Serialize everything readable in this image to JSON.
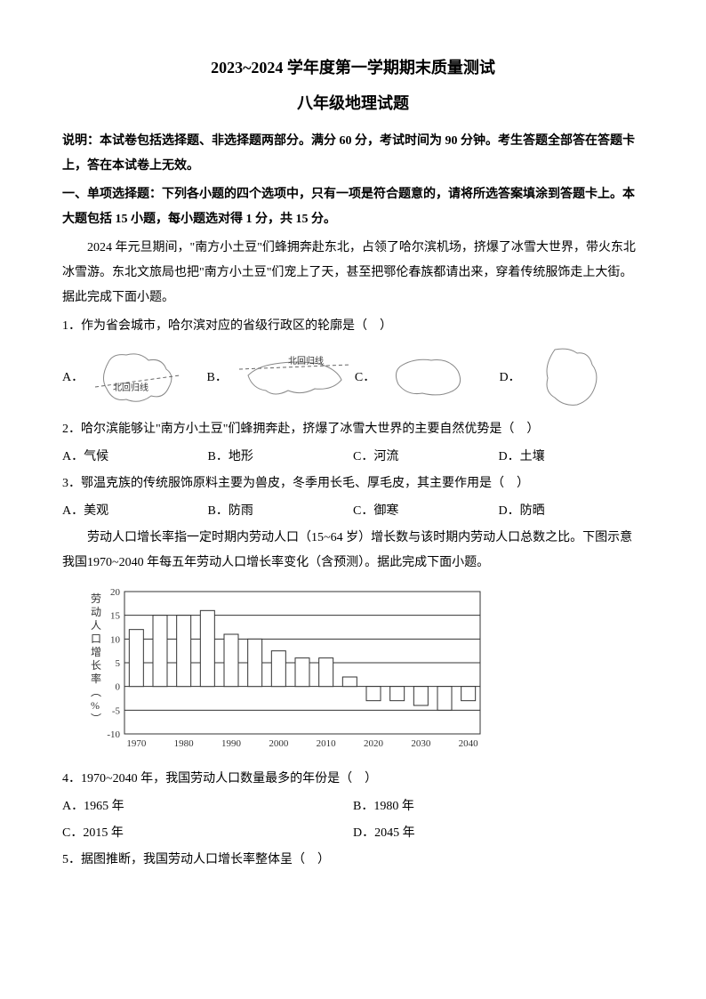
{
  "title_main": "2023~2024 学年度第一学期期末质量测试",
  "title_sub": "八年级地理试题",
  "instruction": "说明：本试卷包括选择题、非选择题两部分。满分 60 分，考试时间为 90 分钟。考生答题全部答在答题卡上，答在本试卷上无效。",
  "section1_header": "一、单项选择题：下列各小题的四个选项中，只有一项是符合题意的，请将所选答案填涂到答题卡上。本大题包括 15 小题，每小题选对得 1 分，共 15 分。",
  "passage1": "2024 年元旦期间，\"南方小土豆\"们蜂拥奔赴东北，占领了哈尔滨机场，挤爆了冰雪大世界，带火东北冰雪游。东北文旅局也把\"南方小土豆\"们宠上了天，甚至把鄂伦春族都请出来，穿着传统服饰走上大街。据此完成下面小题。",
  "q1": {
    "text": "1．作为省会城市，哈尔滨对应的省级行政区的轮廓是（　）",
    "maps": {
      "a_label": "北回归线",
      "b_label": "北回归线"
    },
    "opts": {
      "a": "A．",
      "b": "B．",
      "c": "C．",
      "d": "D．"
    }
  },
  "q2": {
    "text": "2．哈尔滨能够让\"南方小土豆\"们蜂拥奔赴，挤爆了冰雪大世界的主要自然优势是（　）",
    "opts": {
      "a": "A．气候",
      "b": "B．地形",
      "c": "C．河流",
      "d": "D．土壤"
    }
  },
  "q3": {
    "text": "3．鄂温克族的传统服饰原料主要为兽皮，冬季用长毛、厚毛皮，其主要作用是（　）",
    "opts": {
      "a": "A．美观",
      "b": "B．防雨",
      "c": "C．御寒",
      "d": "D．防晒"
    }
  },
  "passage2": "劳动人口增长率指一定时期内劳动人口（15~64 岁）增长数与该时期内劳动人口总数之比。下图示意我国1970~2040 年每五年劳动人口增长率变化（含预测）。据此完成下面小题。",
  "chart": {
    "type": "bar",
    "y_title_lines": [
      "劳",
      "动",
      "人",
      "口",
      "增",
      "长",
      "率",
      "︵",
      "%",
      "︶"
    ],
    "years": [
      1970,
      1975,
      1980,
      1985,
      1990,
      1995,
      2000,
      2005,
      2010,
      2015,
      2020,
      2025,
      2030,
      2035,
      2040
    ],
    "values": [
      12,
      15,
      15,
      16,
      11,
      10,
      7.5,
      6,
      6,
      2,
      -3,
      -3,
      -4,
      -5,
      -3
    ],
    "ylim": [
      -10,
      20
    ],
    "ytick_step": 5,
    "xlabels": [
      1970,
      1980,
      1990,
      2000,
      2010,
      2020,
      2030,
      2040
    ],
    "bar_fill": "#ffffff",
    "bar_stroke": "#333333",
    "grid_color": "#333333",
    "background": "#ffffff",
    "label_fontsize": 11,
    "bar_width": 0.6
  },
  "q4": {
    "text": "4．1970~2040 年，我国劳动人口数量最多的年份是（　）",
    "opts": {
      "a": "A．1965 年",
      "b": "B．1980 年",
      "c": "C．2015 年",
      "d": "D．2045 年"
    }
  },
  "q5": {
    "text": "5．据图推断，我国劳动人口增长率整体呈（　）"
  }
}
